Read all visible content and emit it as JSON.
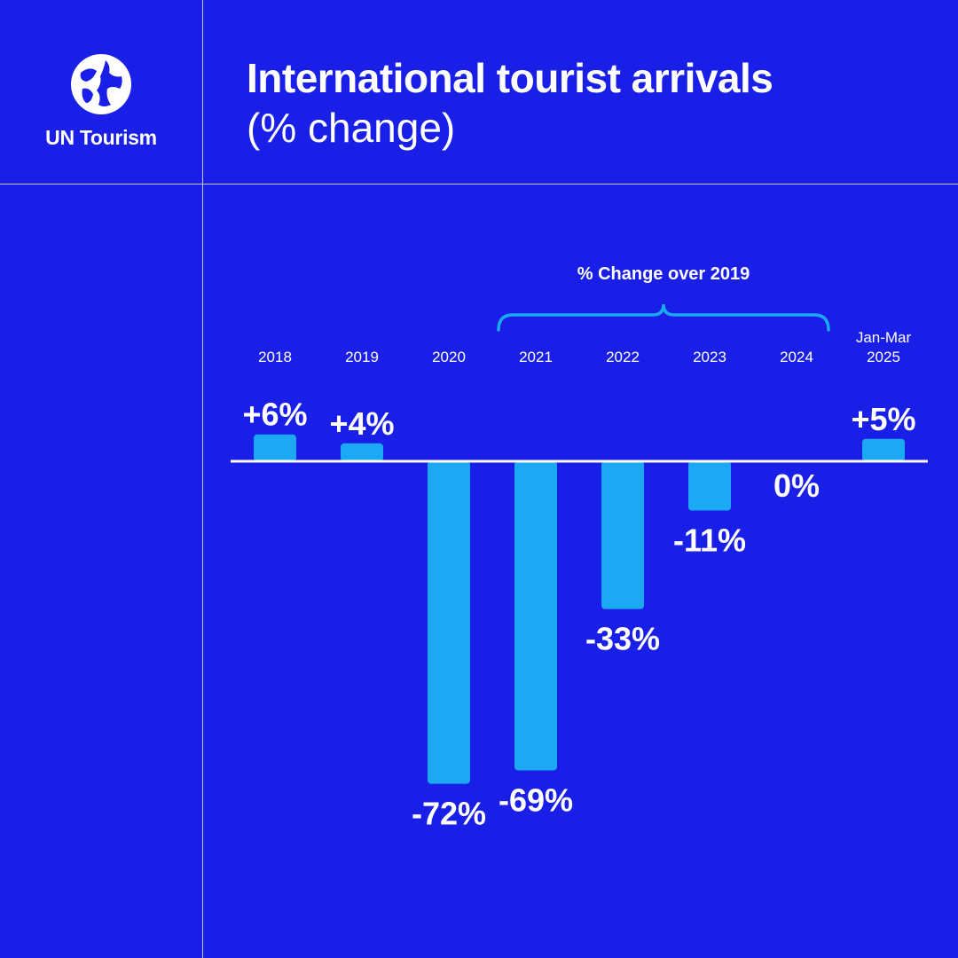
{
  "brand": {
    "name": "UN Tourism",
    "logo_icon": "un-tourism-logo-icon",
    "background_color": "#1a1fe8",
    "bar_color": "#1aa9f2",
    "text_color": "#ffffff"
  },
  "header": {
    "title": "International tourist arrivals",
    "subtitle": "(% change)"
  },
  "chart_data": {
    "type": "bar",
    "title": "International tourist arrivals",
    "subtitle": "(% change)",
    "xlabel": "",
    "ylabel": "",
    "categories": [
      "2018",
      "2019",
      "2020",
      "2021",
      "2022",
      "2023",
      "2024",
      "Jan-Mar\n2025"
    ],
    "values": [
      6,
      4,
      -72,
      -69,
      -33,
      -11,
      0,
      5
    ],
    "data_labels": [
      "+6%",
      "+4%",
      "-72%",
      "-69%",
      "-33%",
      "-11%",
      "0%",
      "+5%"
    ],
    "ylim": [
      -80,
      10
    ],
    "grid": false,
    "annotations": [
      {
        "text": "% Change over 2019",
        "spans_categories": [
          "2021",
          "2022",
          "2023",
          "2024"
        ],
        "style": "curly-brace"
      }
    ]
  }
}
